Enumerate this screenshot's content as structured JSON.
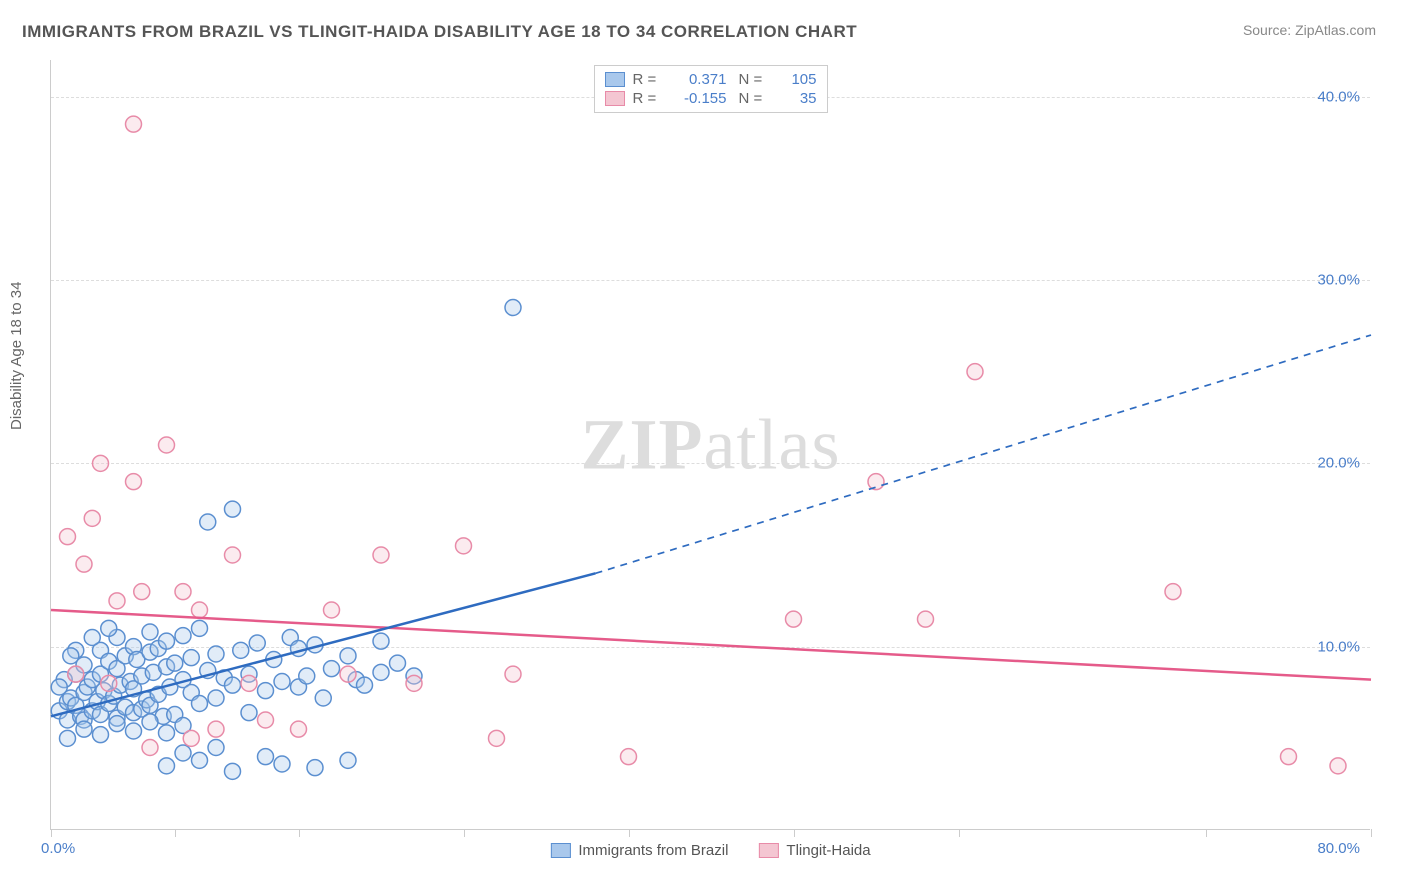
{
  "title": "IMMIGRANTS FROM BRAZIL VS TLINGIT-HAIDA DISABILITY AGE 18 TO 34 CORRELATION CHART",
  "source": "Source: ZipAtlas.com",
  "y_axis_label": "Disability Age 18 to 34",
  "watermark": "ZIPatlas",
  "chart": {
    "type": "scatter",
    "xlim": [
      0,
      80
    ],
    "ylim": [
      0,
      42
    ],
    "x_ticks": [
      0,
      7.5,
      15,
      25,
      35,
      45,
      55,
      70,
      80
    ],
    "y_gridlines": [
      10,
      20,
      30,
      40
    ],
    "y_tick_labels": [
      "10.0%",
      "20.0%",
      "30.0%",
      "40.0%"
    ],
    "x_origin_label": "0.0%",
    "x_max_label": "80.0%",
    "background_color": "#ffffff",
    "grid_color": "#dddddd",
    "axis_color": "#cccccc",
    "tick_label_color": "#4a7ec9",
    "marker_radius": 8,
    "marker_stroke_width": 1.5,
    "marker_fill_opacity": 0.35,
    "series": [
      {
        "name": "Immigrants from Brazil",
        "color_fill": "#a9c8ec",
        "color_stroke": "#5b8fd0",
        "R": "0.371",
        "N": "105",
        "regression": {
          "solid": {
            "x1": 0,
            "y1": 6.2,
            "x2": 33,
            "y2": 14.0
          },
          "dashed": {
            "x1": 33,
            "y1": 14.0,
            "x2": 80,
            "y2": 27.0
          },
          "color": "#2e6bc0",
          "width": 2.5
        },
        "points": [
          [
            0.5,
            6.5
          ],
          [
            1,
            7
          ],
          [
            1,
            6
          ],
          [
            1.2,
            7.2
          ],
          [
            1.5,
            6.8
          ],
          [
            1.5,
            8.5
          ],
          [
            1.8,
            6.2
          ],
          [
            2,
            7.5
          ],
          [
            2,
            6
          ],
          [
            2,
            9
          ],
          [
            2.2,
            7.8
          ],
          [
            2.5,
            6.5
          ],
          [
            2.5,
            8.2
          ],
          [
            2.8,
            7
          ],
          [
            3,
            6.3
          ],
          [
            3,
            9.8
          ],
          [
            3,
            8.5
          ],
          [
            3.2,
            7.6
          ],
          [
            3.5,
            6.9
          ],
          [
            3.5,
            9.2
          ],
          [
            3.8,
            7.3
          ],
          [
            4,
            6.1
          ],
          [
            4,
            8.8
          ],
          [
            4,
            10.5
          ],
          [
            4.2,
            7.9
          ],
          [
            4.5,
            6.7
          ],
          [
            4.5,
            9.5
          ],
          [
            4.8,
            8.1
          ],
          [
            5,
            6.4
          ],
          [
            5,
            10
          ],
          [
            5,
            7.7
          ],
          [
            5.2,
            9.3
          ],
          [
            5.5,
            6.6
          ],
          [
            5.5,
            8.4
          ],
          [
            5.8,
            7.1
          ],
          [
            6,
            9.7
          ],
          [
            6,
            6.8
          ],
          [
            6,
            10.8
          ],
          [
            6.2,
            8.6
          ],
          [
            6.5,
            7.4
          ],
          [
            6.5,
            9.9
          ],
          [
            6.8,
            6.2
          ],
          [
            7,
            8.9
          ],
          [
            7,
            10.3
          ],
          [
            7,
            3.5
          ],
          [
            7.2,
            7.8
          ],
          [
            7.5,
            9.1
          ],
          [
            7.5,
            6.3
          ],
          [
            8,
            4.2
          ],
          [
            8,
            8.2
          ],
          [
            8,
            10.6
          ],
          [
            8.5,
            7.5
          ],
          [
            8.5,
            9.4
          ],
          [
            9,
            6.9
          ],
          [
            9,
            3.8
          ],
          [
            9,
            11
          ],
          [
            9.5,
            8.7
          ],
          [
            9.5,
            16.8
          ],
          [
            10,
            7.2
          ],
          [
            10,
            9.6
          ],
          [
            10,
            4.5
          ],
          [
            10.5,
            8.3
          ],
          [
            11,
            7.9
          ],
          [
            11,
            17.5
          ],
          [
            11,
            3.2
          ],
          [
            11.5,
            9.8
          ],
          [
            12,
            6.4
          ],
          [
            12,
            8.5
          ],
          [
            12.5,
            10.2
          ],
          [
            13,
            7.6
          ],
          [
            13,
            4
          ],
          [
            13.5,
            9.3
          ],
          [
            14,
            8.1
          ],
          [
            14,
            3.6
          ],
          [
            14.5,
            10.5
          ],
          [
            15,
            7.8
          ],
          [
            15,
            9.9
          ],
          [
            15.5,
            8.4
          ],
          [
            16,
            3.4
          ],
          [
            16,
            10.1
          ],
          [
            16.5,
            7.2
          ],
          [
            17,
            8.8
          ],
          [
            18,
            9.5
          ],
          [
            18,
            3.8
          ],
          [
            18.5,
            8.2
          ],
          [
            19,
            7.9
          ],
          [
            20,
            10.3
          ],
          [
            20,
            8.6
          ],
          [
            21,
            9.1
          ],
          [
            22,
            8.4
          ],
          [
            28,
            28.5
          ],
          [
            1,
            5
          ],
          [
            2,
            5.5
          ],
          [
            3,
            5.2
          ],
          [
            4,
            5.8
          ],
          [
            5,
            5.4
          ],
          [
            6,
            5.9
          ],
          [
            7,
            5.3
          ],
          [
            8,
            5.7
          ],
          [
            2.5,
            10.5
          ],
          [
            3.5,
            11
          ],
          [
            1.5,
            9.8
          ],
          [
            0.8,
            8.2
          ],
          [
            1.2,
            9.5
          ],
          [
            0.5,
            7.8
          ]
        ]
      },
      {
        "name": "Tlingit-Haida",
        "color_fill": "#f4c6d2",
        "color_stroke": "#e88ba8",
        "R": "-0.155",
        "N": "35",
        "regression": {
          "solid": {
            "x1": 0,
            "y1": 12.0,
            "x2": 80,
            "y2": 8.2
          },
          "color": "#e55b8a",
          "width": 2.5
        },
        "points": [
          [
            1,
            16
          ],
          [
            1.5,
            8.5
          ],
          [
            2,
            14.5
          ],
          [
            2.5,
            17
          ],
          [
            3,
            20
          ],
          [
            3.5,
            8
          ],
          [
            4,
            12.5
          ],
          [
            5,
            19
          ],
          [
            5,
            38.5
          ],
          [
            5.5,
            13
          ],
          [
            6,
            4.5
          ],
          [
            7,
            21
          ],
          [
            8,
            13
          ],
          [
            8.5,
            5
          ],
          [
            9,
            12
          ],
          [
            10,
            5.5
          ],
          [
            11,
            15
          ],
          [
            12,
            8
          ],
          [
            13,
            6
          ],
          [
            15,
            5.5
          ],
          [
            17,
            12
          ],
          [
            18,
            8.5
          ],
          [
            20,
            15
          ],
          [
            22,
            8
          ],
          [
            25,
            15.5
          ],
          [
            27,
            5
          ],
          [
            28,
            8.5
          ],
          [
            35,
            4
          ],
          [
            45,
            11.5
          ],
          [
            50,
            19
          ],
          [
            53,
            11.5
          ],
          [
            56,
            25
          ],
          [
            68,
            13
          ],
          [
            75,
            4
          ],
          [
            78,
            3.5
          ]
        ]
      }
    ]
  },
  "legend": {
    "r_label": "R =",
    "n_label": "N ="
  }
}
